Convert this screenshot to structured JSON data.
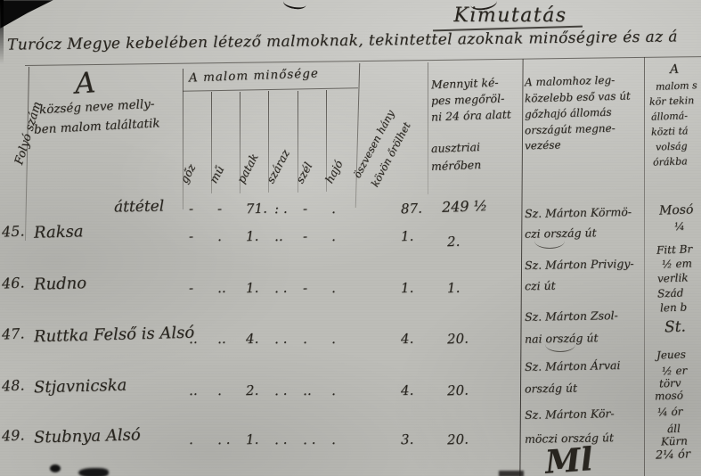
{
  "page": {
    "title": "Kimutatás",
    "subtitle": "Turócz Megye kebelében létező malmoknak, tekintettel azoknak minőségire és az á",
    "bottom_fragment": "Ml"
  },
  "table": {
    "header": {
      "serial_col": "Folyó szám",
      "village_initial": "A",
      "village_line1": "község neve melly-",
      "village_line2": "ben malom találtatik",
      "quality_group": "A malom minősége",
      "quality_cols": [
        "gőz",
        "mű",
        "patak",
        "száraz",
        "szél",
        "hajó"
      ],
      "stones_line1": "öszvesen hány",
      "stones_line2": "kövön őrölhet",
      "capacity_lines": [
        "Mennyit ké-",
        "pes megőröl-",
        "ni 24 óra alatt",
        "ausztriai",
        "mérőben"
      ],
      "station_lines": [
        "A malomhoz leg-",
        "közelebb eső vas út",
        "gőzhajó állomás",
        "országút megne-",
        "vezése"
      ],
      "distance_lines": [
        "A",
        "malom s",
        "kör tekin",
        "állomá-",
        "közti tá",
        "volság",
        "órákba"
      ]
    },
    "rows": [
      {
        "serial": "",
        "village": "áttétel",
        "goz": "-",
        "mu": "-",
        "patak": "71.",
        "szaraz": ": .",
        "szel": "-",
        "hajo": ".",
        "stones": "87.",
        "capacity": "249 ½"
      },
      {
        "serial": "45.",
        "village": "Raksa",
        "goz": "-",
        "mu": ".",
        "patak": "1.",
        "szaraz": "..",
        "szel": "-",
        "hajo": ".",
        "stones": "1.",
        "capacity": "2.",
        "station1": "Sz. Márton Körmö-",
        "station2": "czi ország út"
      },
      {
        "serial": "46.",
        "village": "Rudno",
        "goz": "-",
        "mu": "..",
        "patak": "1.",
        "szaraz": ". .",
        "szel": "-",
        "hajo": ".",
        "stones": "1.",
        "capacity": "1.",
        "station1": "Sz. Márton Privigy-",
        "station2": "czi út"
      },
      {
        "serial": "47.",
        "village": "Ruttka Felső is Alsó",
        "goz": "..",
        "mu": "..",
        "patak": "4.",
        "szaraz": ". .",
        "szel": ".",
        "hajo": ".",
        "stones": "4.",
        "capacity": "20.",
        "station1": "Sz. Márton Zsol-",
        "station2": "nai ország út"
      },
      {
        "serial": "48.",
        "village": "Stjavnicska",
        "goz": "..",
        "mu": ".",
        "patak": "2.",
        "szaraz": ". .",
        "szel": "..",
        "hajo": ".",
        "stones": "4.",
        "capacity": "20.",
        "station1": "Sz. Márton Árvai",
        "station2": "ország út"
      },
      {
        "serial": "49.",
        "village": "Stubnya Alsó",
        "goz": ".",
        "mu": ". .",
        "patak": "1.",
        "szaraz": ". .",
        "szel": ". .",
        "hajo": ".",
        "stones": "3.",
        "capacity": "20.",
        "station1": "Sz. Márton Kör-",
        "station2": "möczi ország út"
      }
    ],
    "margin_fragments": [
      "Mosó",
      "¼",
      "Fitt Br",
      "½ em",
      "verlik",
      "Szád",
      "len b",
      "St.",
      "Jeues",
      "½ er",
      "törv",
      "mosó",
      "¼ ór",
      "áll",
      "Kürn",
      "2¼ ór"
    ]
  }
}
